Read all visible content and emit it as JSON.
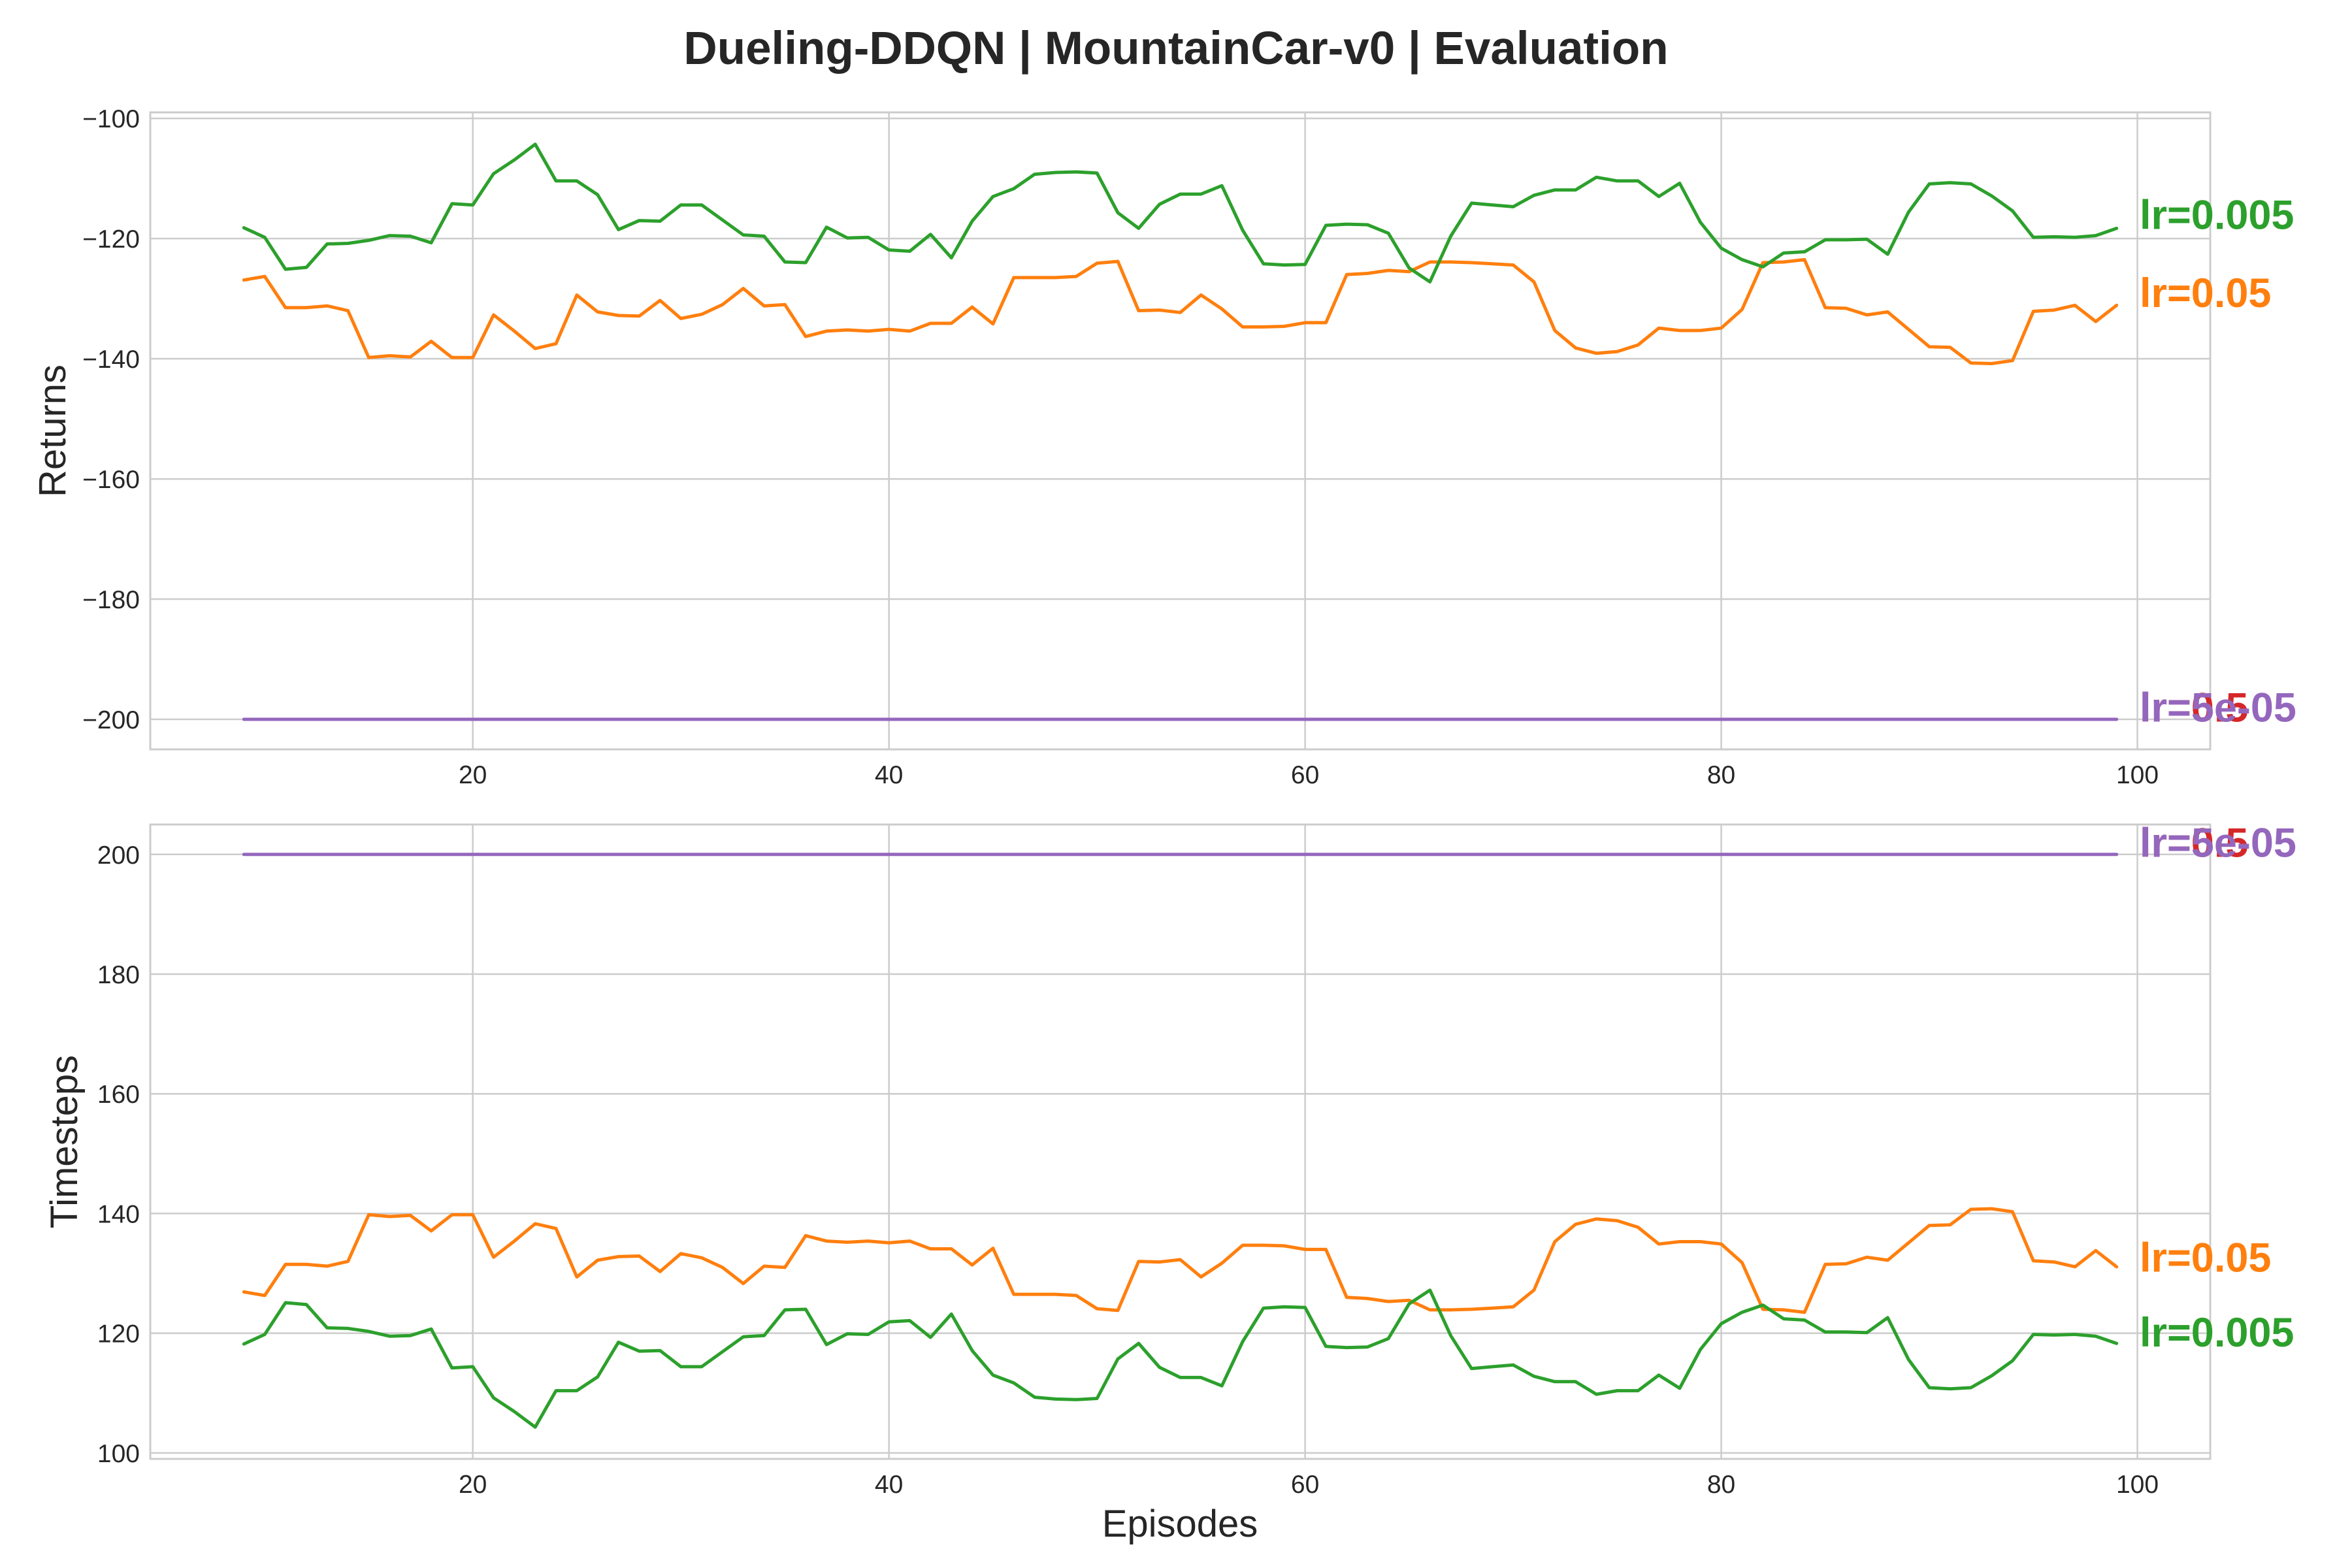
{
  "chart_data": {
    "type": "line",
    "title": "Dueling-DDQN | MountainCar-v0 | Evaluation",
    "xlabel": "Episodes",
    "x": [
      9,
      10,
      11,
      12,
      13,
      14,
      15,
      16,
      17,
      18,
      19,
      20,
      21,
      22,
      23,
      24,
      25,
      26,
      27,
      28,
      29,
      30,
      31,
      32,
      33,
      34,
      35,
      36,
      37,
      38,
      39,
      40,
      41,
      42,
      43,
      44,
      45,
      46,
      47,
      48,
      49,
      50,
      51,
      52,
      53,
      54,
      55,
      56,
      57,
      58,
      59,
      60,
      61,
      62,
      63,
      64,
      65,
      66,
      67,
      68,
      69,
      70,
      71,
      72,
      73,
      74,
      75,
      76,
      77,
      78,
      79,
      80,
      81,
      82,
      83,
      84,
      85,
      86,
      87,
      88,
      89,
      90,
      91,
      92,
      93,
      94,
      95,
      96,
      97,
      98,
      99
    ],
    "xticks": [
      20,
      40,
      60,
      80,
      100
    ],
    "colors": {
      "lr=0.005": "#2ca02c",
      "lr=0.05": "#ff7f0e",
      "lr=0.5": "#d62728",
      "lr=5e-05": "#9467bd",
      "grid": "#cccccc",
      "frame": "#cccccc"
    },
    "grid": true,
    "legend": "end-of-line labels at right",
    "panels": [
      {
        "ylabel": "Returns",
        "ylim": [
          -205,
          -99
        ],
        "yticks": [
          -100,
          -120,
          -140,
          -160,
          -180,
          -200
        ],
        "ytick_labels": [
          "−100",
          "−120",
          "−140",
          "−160",
          "−180",
          "−200"
        ],
        "end_labels": [
          {
            "text": "lr=0.005",
            "color": "#2ca02c",
            "y": -116
          },
          {
            "text": "lr=0.05",
            "color": "#ff7f0e",
            "y": -129
          },
          {
            "text": "lr=0.5",
            "color": "#d62728",
            "y": -198
          },
          {
            "text": "lr=5e-05",
            "color": "#9467bd",
            "y": -198
          }
        ],
        "series": [
          {
            "name": "lr=5e-05",
            "color": "#9467bd",
            "values": [
              -200,
              -200,
              -200,
              -200,
              -200,
              -200,
              -200,
              -200,
              -200,
              -200,
              -200,
              -200,
              -200,
              -200,
              -200,
              -200,
              -200,
              -200,
              -200,
              -200,
              -200,
              -200,
              -200,
              -200,
              -200,
              -200,
              -200,
              -200,
              -200,
              -200,
              -200,
              -200,
              -200,
              -200,
              -200,
              -200,
              -200,
              -200,
              -200,
              -200,
              -200,
              -200,
              -200,
              -200,
              -200,
              -200,
              -200,
              -200,
              -200,
              -200,
              -200,
              -200,
              -200,
              -200,
              -200,
              -200,
              -200,
              -200,
              -200,
              -200,
              -200,
              -200,
              -200,
              -200,
              -200,
              -200,
              -200,
              -200,
              -200,
              -200,
              -200,
              -200,
              -200,
              -200,
              -200,
              -200,
              -200,
              -200,
              -200,
              -200,
              -200,
              -200,
              -200,
              -200,
              -200,
              -200,
              -200,
              -200,
              -200,
              -200,
              -200
            ]
          },
          {
            "name": "lr=0.05",
            "color": "#ff7f0e",
            "values": [
              -126.9,
              -126.3,
              -131.5,
              -131.5,
              -131.2,
              -132.0,
              -139.8,
              -139.5,
              -139.7,
              -137.1,
              -139.8,
              -139.8,
              -132.7,
              -135.4,
              -138.3,
              -137.5,
              -129.4,
              -132.2,
              -132.8,
              -132.9,
              -130.3,
              -133.3,
              -132.6,
              -131.0,
              -128.3,
              -131.2,
              -131.0,
              -136.3,
              -135.4,
              -135.2,
              -135.4,
              -135.1,
              -135.4,
              -134.1,
              -134.1,
              -131.4,
              -134.2,
              -126.5,
              -126.5,
              -126.5,
              -126.3,
              -124.1,
              -123.8,
              -132.0,
              -131.9,
              -132.3,
              -129.4,
              -131.7,
              -134.7,
              -134.7,
              -134.6,
              -134.0,
              -134.0,
              -126.0,
              -125.8,
              -125.3,
              -125.5,
              -123.9,
              -123.9,
              -124.0,
              -124.2,
              -124.4,
              -127.2,
              -135.3,
              -138.2,
              -139.1,
              -138.8,
              -137.7,
              -134.9,
              -135.3,
              -135.3,
              -134.9,
              -131.8,
              -124.0,
              -123.9,
              -123.5,
              -131.5,
              -131.6,
              -132.7,
              -132.2,
              -135.1,
              -138.0,
              -138.1,
              -140.7,
              -140.8,
              -140.3,
              -132.1,
              -131.9,
              -131.1,
              -133.8,
              -131.1
            ]
          },
          {
            "name": "lr=0.005",
            "color": "#2ca02c",
            "values": [
              -118.2,
              -119.8,
              -125.1,
              -124.8,
              -120.9,
              -120.8,
              -120.3,
              -119.5,
              -119.6,
              -120.7,
              -114.2,
              -114.4,
              -109.2,
              -106.9,
              -104.3,
              -110.4,
              -110.4,
              -112.7,
              -118.5,
              -117.0,
              -117.1,
              -114.4,
              -114.4,
              -116.9,
              -119.4,
              -119.6,
              -123.9,
              -124.0,
              -118.1,
              -119.9,
              -119.8,
              -121.9,
              -122.1,
              -119.3,
              -123.2,
              -117.1,
              -113.0,
              -111.7,
              -109.3,
              -109.0,
              -108.9,
              -109.1,
              -115.7,
              -118.3,
              -114.3,
              -112.6,
              -112.6,
              -111.2,
              -118.6,
              -124.2,
              -124.4,
              -124.3,
              -117.8,
              -117.6,
              -117.7,
              -119.1,
              -124.9,
              -127.2,
              -119.6,
              -114.1,
              -114.4,
              -114.7,
              -112.8,
              -111.9,
              -111.9,
              -109.8,
              -110.4,
              -110.4,
              -113.0,
              -110.8,
              -117.3,
              -121.6,
              -123.5,
              -124.7,
              -122.4,
              -122.2,
              -120.2,
              -120.2,
              -120.1,
              -122.6,
              -115.6,
              -110.9,
              -110.7,
              -110.9,
              -112.9,
              -115.4,
              -119.8,
              -119.7,
              -119.8,
              -119.5,
              -118.3
            ]
          },
          {
            "name": "lr=0.5",
            "color": "#d62728",
            "values": []
          }
        ]
      },
      {
        "ylabel": "Timesteps",
        "ylim": [
          99,
          205
        ],
        "yticks": [
          100,
          120,
          140,
          160,
          180,
          200
        ],
        "ytick_labels": [
          "100",
          "120",
          "140",
          "160",
          "180",
          "200"
        ],
        "end_labels": [
          {
            "text": "lr=0.05",
            "color": "#ff7f0e",
            "y": 132.7
          },
          {
            "text": "lr=0.005",
            "color": "#2ca02c",
            "y": 120.2
          },
          {
            "text": "lr=0.5",
            "color": "#d62728",
            "y": 202
          },
          {
            "text": "lr=5e-05",
            "color": "#9467bd",
            "y": 202
          }
        ],
        "series": [
          {
            "name": "lr=5e-05",
            "color": "#9467bd",
            "values": [
              200,
              200,
              200,
              200,
              200,
              200,
              200,
              200,
              200,
              200,
              200,
              200,
              200,
              200,
              200,
              200,
              200,
              200,
              200,
              200,
              200,
              200,
              200,
              200,
              200,
              200,
              200,
              200,
              200,
              200,
              200,
              200,
              200,
              200,
              200,
              200,
              200,
              200,
              200,
              200,
              200,
              200,
              200,
              200,
              200,
              200,
              200,
              200,
              200,
              200,
              200,
              200,
              200,
              200,
              200,
              200,
              200,
              200,
              200,
              200,
              200,
              200,
              200,
              200,
              200,
              200,
              200,
              200,
              200,
              200,
              200,
              200,
              200,
              200,
              200,
              200,
              200,
              200,
              200,
              200,
              200,
              200,
              200,
              200,
              200,
              200,
              200,
              200,
              200,
              200,
              200
            ]
          },
          {
            "name": "lr=0.05",
            "color": "#ff7f0e",
            "values": [
              126.9,
              126.3,
              131.5,
              131.5,
              131.2,
              132.0,
              139.8,
              139.5,
              139.7,
              137.1,
              139.8,
              139.8,
              132.7,
              135.4,
              138.3,
              137.5,
              129.4,
              132.2,
              132.8,
              132.9,
              130.3,
              133.3,
              132.6,
              131.0,
              128.3,
              131.2,
              131.0,
              136.3,
              135.4,
              135.2,
              135.4,
              135.1,
              135.4,
              134.1,
              134.1,
              131.4,
              134.2,
              126.5,
              126.5,
              126.5,
              126.3,
              124.1,
              123.8,
              132.0,
              131.9,
              132.3,
              129.4,
              131.7,
              134.7,
              134.7,
              134.6,
              134.0,
              134.0,
              126.0,
              125.8,
              125.3,
              125.5,
              123.9,
              123.9,
              124.0,
              124.2,
              124.4,
              127.2,
              135.3,
              138.2,
              139.1,
              138.8,
              137.7,
              134.9,
              135.3,
              135.3,
              134.9,
              131.8,
              124.0,
              123.9,
              123.5,
              131.5,
              131.6,
              132.7,
              132.2,
              135.1,
              138.0,
              138.1,
              140.7,
              140.8,
              140.3,
              132.1,
              131.9,
              131.1,
              133.8,
              131.1
            ]
          },
          {
            "name": "lr=0.005",
            "color": "#2ca02c",
            "values": [
              118.2,
              119.8,
              125.1,
              124.8,
              120.9,
              120.8,
              120.3,
              119.5,
              119.6,
              120.7,
              114.2,
              114.4,
              109.2,
              106.9,
              104.3,
              110.4,
              110.4,
              112.7,
              118.5,
              117.0,
              117.1,
              114.4,
              114.4,
              116.9,
              119.4,
              119.6,
              123.9,
              124.0,
              118.1,
              119.9,
              119.8,
              121.9,
              122.1,
              119.3,
              123.2,
              117.1,
              113.0,
              111.7,
              109.3,
              109.0,
              108.9,
              109.1,
              115.7,
              118.3,
              114.3,
              112.6,
              112.6,
              111.2,
              118.6,
              124.2,
              124.4,
              124.3,
              117.8,
              117.6,
              117.7,
              119.1,
              124.9,
              127.2,
              119.6,
              114.1,
              114.4,
              114.7,
              112.8,
              111.9,
              111.9,
              109.8,
              110.4,
              110.4,
              113.0,
              110.8,
              117.3,
              121.6,
              123.5,
              124.7,
              122.4,
              122.2,
              120.2,
              120.2,
              120.1,
              122.6,
              115.6,
              110.9,
              110.7,
              110.9,
              112.9,
              115.4,
              119.8,
              119.7,
              119.8,
              119.5,
              118.3
            ]
          },
          {
            "name": "lr=0.5",
            "color": "#d62728",
            "values": []
          }
        ]
      }
    ]
  }
}
